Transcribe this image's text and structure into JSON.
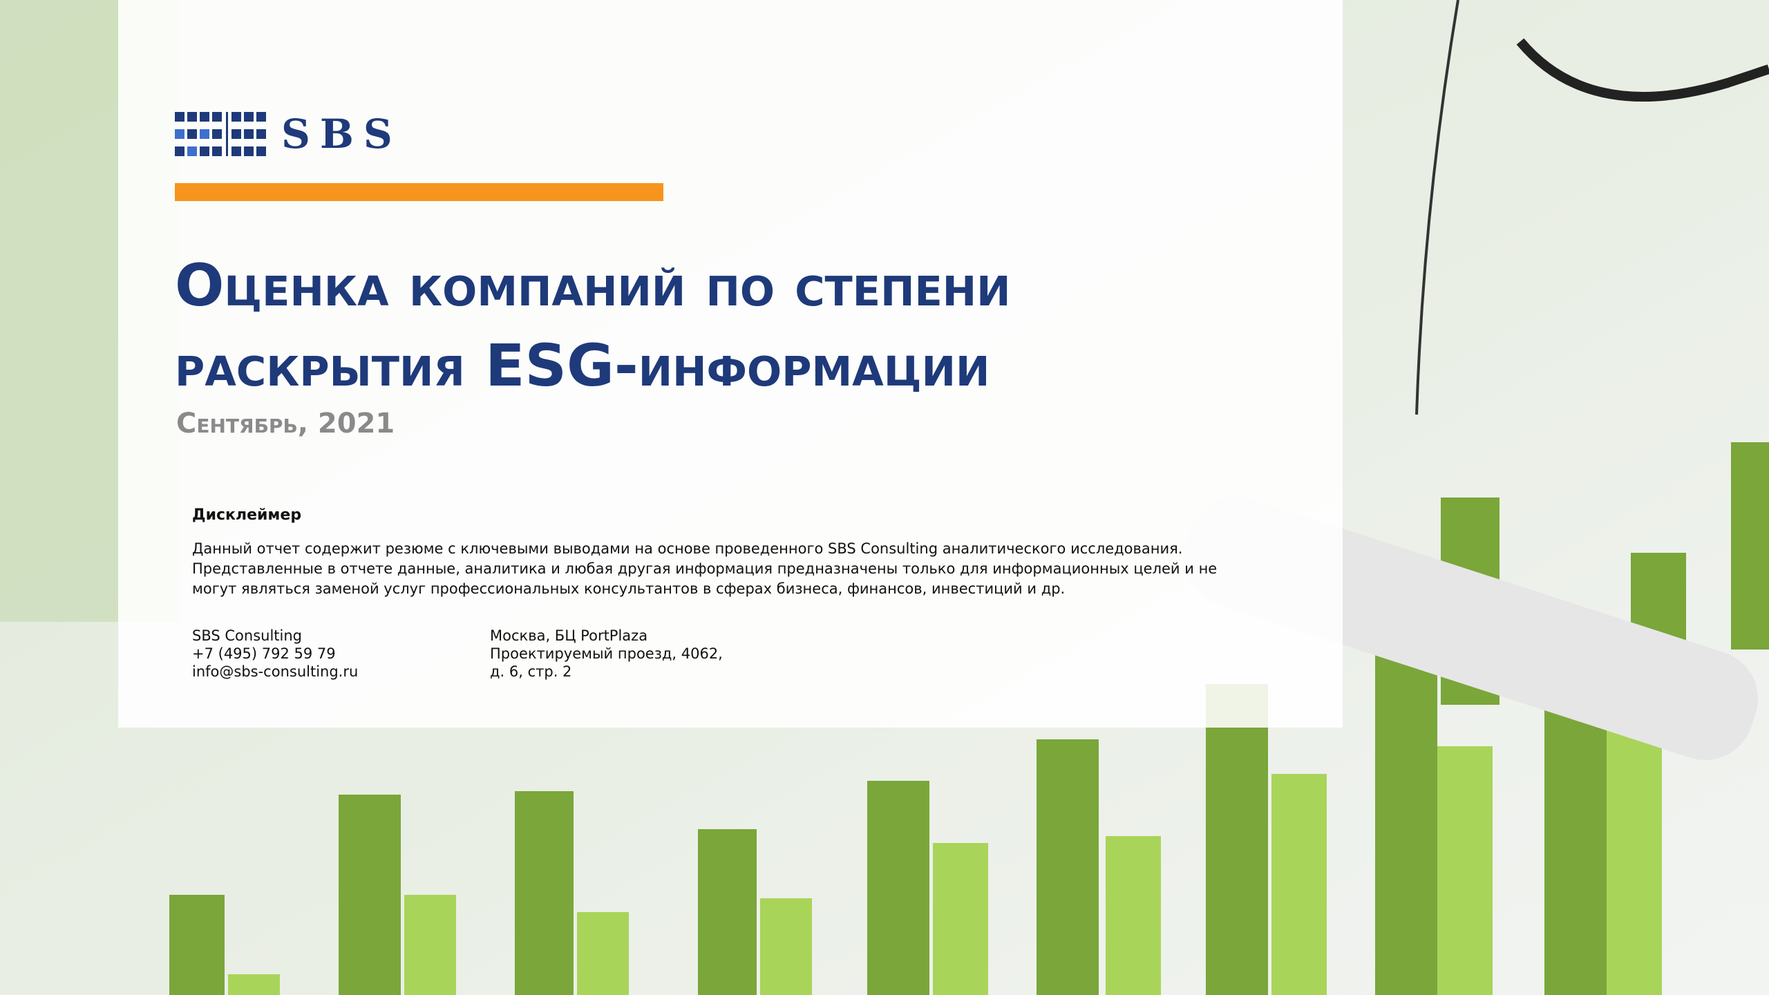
{
  "header": {
    "logo": "SBS"
  },
  "title": {
    "lines": [
      "Оценка компаний по степени",
      "раскрытия ESG-информации"
    ]
  },
  "date": "Сентябрь, 2021",
  "disclaimer": {
    "title": "Дисклеймер",
    "lines": [
      "Данный отчет содержит резюме с ключевыми выводами на основе проведенного SBS Consulting аналитического исследования.",
      "Представленные в отчете данные, аналитика и любая другая информация предназначены только для информационных целей и не",
      "могут являться заменой услуг профессиональных консультантов в сферах бизнеса, финансов, инвестиций и др."
    ]
  },
  "contacts": {
    "company": [
      "SBS Consulting",
      "+7 (495) 792 59 79",
      "info@sbs-consulting.ru"
    ],
    "address": [
      "Москва, БЦ PortPlaza",
      "Проектируемый проезд, 4062,",
      "д. 6, стр. 2"
    ]
  }
}
